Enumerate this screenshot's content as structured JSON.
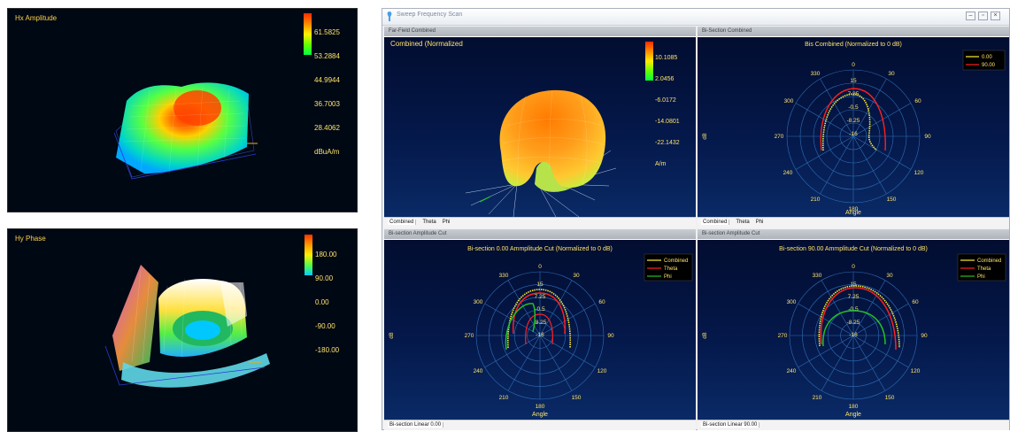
{
  "hx_amplitude": {
    "title": "Hx Amplitude",
    "scale": [
      "61.5825",
      "53.2884",
      "44.9944",
      "36.7003",
      "28.4062"
    ],
    "unit": "dBuA/m"
  },
  "hy_phase": {
    "title": "Hy Phase",
    "scale": [
      "180.00",
      "90.00",
      "0.00",
      "-90.00",
      "-180.00"
    ]
  },
  "window": {
    "title": "Sweep Frequency Scan",
    "buttons": [
      "minimize",
      "maximize",
      "close"
    ],
    "far_field": {
      "header": "Far-Field Combined",
      "title": "Combined (Normalized",
      "scale": [
        "10.1085",
        "2.0456",
        "-6.0172",
        "-14.0801",
        "-22.1432"
      ],
      "unit": "A/m",
      "tabs": [
        "Combined",
        "Theta",
        "Phi"
      ]
    },
    "bisection_combined": {
      "header": "Bi-Section Combined",
      "title": "Bis Combined (Normalized to 0 dB)",
      "legend": [
        "0.00",
        "90.00"
      ],
      "angles": [
        "0",
        "30",
        "60",
        "90",
        "120",
        "150",
        "180",
        "210",
        "240",
        "270",
        "300",
        "330"
      ],
      "radial": [
        "15",
        "7.25",
        "-0.5",
        "-8.25",
        "-16"
      ],
      "xlabel": "Angle",
      "ylabel": "dB",
      "tabs": [
        "Combined",
        "Theta",
        "Phi"
      ]
    },
    "cut_0": {
      "header": "Bi-section Amplitude Cut",
      "title": "Bi-section 0.00 Ammplitude Cut (Normalized to 0 dB)",
      "legend": [
        "Combined",
        "Theta",
        "Phi"
      ],
      "angles": [
        "0",
        "30",
        "60",
        "90",
        "120",
        "150",
        "180",
        "210",
        "240",
        "270",
        "300",
        "330"
      ],
      "radial": [
        "15",
        "7.25",
        "-0.5",
        "-8.25",
        "-16"
      ],
      "xlabel": "Angle",
      "ylabel": "dB",
      "status": "Bi-section Linear 0.00"
    },
    "cut_90": {
      "header": "Bi-section Amplitude Cut",
      "title": "Bi-section 90.00 Ammplitude Cut (Normalized to 0 dB)",
      "legend": [
        "Combined",
        "Theta",
        "Phi"
      ],
      "angles": [
        "0",
        "30",
        "60",
        "90",
        "120",
        "150",
        "180",
        "210",
        "240",
        "270",
        "300",
        "330"
      ],
      "radial": [
        "15",
        "7.25",
        "-0.5",
        "-8.25",
        "-16"
      ],
      "xlabel": "Angle",
      "ylabel": "dB",
      "status": "Bi-section Linear 90.00"
    }
  },
  "colors": {
    "label": "#ffe36a",
    "combined": "#ffee33",
    "theta": "#ff2020",
    "phi": "#22c022",
    "plot_bg": "#041a4a"
  }
}
